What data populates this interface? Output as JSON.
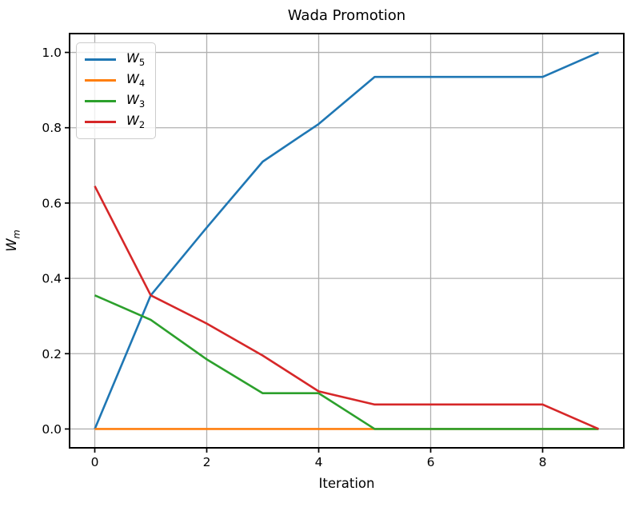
{
  "figure": {
    "title": "Wada Promotion"
  },
  "chart_data": {
    "type": "line",
    "title": "Wada Promotion",
    "xlabel": "Iteration",
    "ylabel": "W_m",
    "ylabel_base": "W",
    "ylabel_sub": "m",
    "x": [
      0,
      1,
      2,
      3,
      4,
      5,
      6,
      7,
      8,
      9
    ],
    "series": [
      {
        "name": "W_5",
        "label_base": "W",
        "label_sub": "5",
        "color": "#1f77b4",
        "values": [
          0.0,
          0.355,
          0.535,
          0.71,
          0.81,
          0.935,
          0.935,
          0.935,
          0.935,
          1.0
        ]
      },
      {
        "name": "W_4",
        "label_base": "W",
        "label_sub": "4",
        "color": "#ff7f0e",
        "values": [
          0.0,
          0.0,
          0.0,
          0.0,
          0.0,
          0.0,
          0.0,
          0.0,
          0.0,
          0.0
        ]
      },
      {
        "name": "W_3",
        "label_base": "W",
        "label_sub": "3",
        "color": "#2ca02c",
        "values": [
          0.355,
          0.29,
          0.185,
          0.095,
          0.095,
          0.0,
          0.0,
          0.0,
          0.0,
          0.0
        ]
      },
      {
        "name": "W_2",
        "label_base": "W",
        "label_sub": "2",
        "color": "#d62728",
        "values": [
          0.645,
          0.355,
          0.28,
          0.195,
          0.1,
          0.065,
          0.065,
          0.065,
          0.065,
          0.0
        ]
      }
    ],
    "x_ticks": [
      {
        "v": 0,
        "label": "0"
      },
      {
        "v": 2,
        "label": "2"
      },
      {
        "v": 4,
        "label": "4"
      },
      {
        "v": 6,
        "label": "6"
      },
      {
        "v": 8,
        "label": "8"
      }
    ],
    "y_ticks": [
      {
        "v": 0.0,
        "label": "0.0"
      },
      {
        "v": 0.2,
        "label": "0.2"
      },
      {
        "v": 0.4,
        "label": "0.4"
      },
      {
        "v": 0.6,
        "label": "0.6"
      },
      {
        "v": 0.8,
        "label": "0.8"
      },
      {
        "v": 1.0,
        "label": "1.0"
      }
    ],
    "xlim": [
      -0.45,
      9.45
    ],
    "ylim": [
      -0.05,
      1.05
    ],
    "grid": true,
    "legend_position": "upper-left",
    "colors": {
      "grid": "#b0b0b0",
      "spine": "#000000",
      "tick": "#000000",
      "text": "#000000",
      "legend_border": "#cccccc",
      "background": "#ffffff"
    }
  }
}
